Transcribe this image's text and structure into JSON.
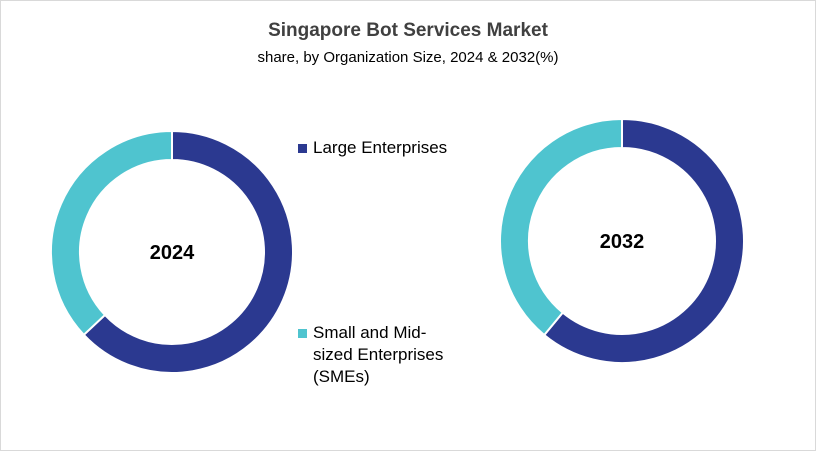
{
  "chart_data": {
    "type": "pie",
    "title": "Singapore Bot Services Market",
    "subtitle": "share, by Organization Size, 2024 & 2032(%)",
    "legend_position": "center",
    "categories": [
      "Large Enterprises",
      "Small and Mid-sized Enterprises (SMEs)"
    ],
    "colors": [
      "#2B3990",
      "#4FC4CF"
    ],
    "charts": [
      {
        "label": "2024",
        "values": [
          63,
          37
        ]
      },
      {
        "label": "2032",
        "values": [
          61,
          39
        ]
      }
    ]
  },
  "legend": {
    "item1": "Large Enterprises",
    "item2_line1": "Small and Mid-",
    "item2_line2": "sized Enterprises",
    "item2_line3": "(SMEs)"
  }
}
